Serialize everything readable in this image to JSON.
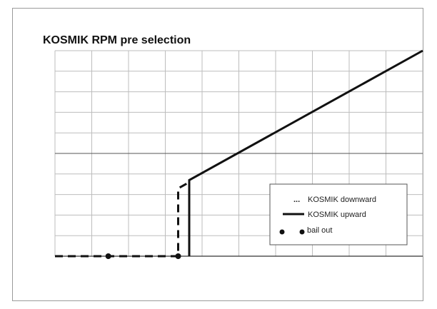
{
  "chart_data": {
    "type": "line",
    "title": "KOSMIK RPM pre selection",
    "xlabel": "",
    "ylabel": "",
    "xlim": [
      0,
      100
    ],
    "ylim": [
      0,
      100
    ],
    "grid": true,
    "legend_placement": "lower-right",
    "series": [
      {
        "name": "KOSMIK downward",
        "style": "dashed",
        "color": "#111111",
        "x": [
          0,
          33.5,
          33.5,
          36.5
        ],
        "y": [
          0,
          0,
          33,
          36
        ]
      },
      {
        "name": "KOSMIK upward",
        "style": "solid",
        "color": "#111111",
        "x": [
          36.5,
          36.5,
          100
        ],
        "y": [
          0,
          37,
          100
        ]
      },
      {
        "name": "bail out",
        "style": "marker",
        "color": "#111111",
        "x": [
          14.5,
          33.5
        ],
        "y": [
          0,
          0
        ]
      }
    ],
    "legend_markers": [
      "...",
      "",
      ""
    ]
  }
}
